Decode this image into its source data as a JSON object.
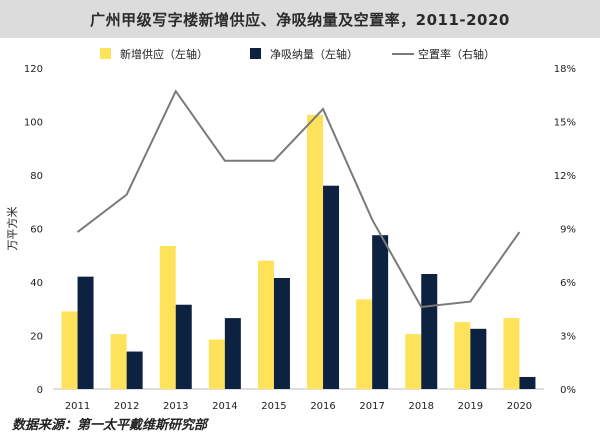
{
  "chart_data": {
    "type": "bar",
    "title": "广州甲级写字楼新增供应、净吸纳量及空置率，2011-2020",
    "ylabel": "万平方米",
    "source_note": "数据来源：第一太平戴维斯研究部",
    "categories": [
      "2011",
      "2012",
      "2013",
      "2014",
      "2015",
      "2016",
      "2017",
      "2018",
      "2019",
      "2020"
    ],
    "ylim": [
      0,
      120
    ],
    "yticks": [
      "0",
      "20",
      "40",
      "60",
      "80",
      "100",
      "120"
    ],
    "y2lim": [
      0,
      18
    ],
    "y2ticks": [
      "0%",
      "3%",
      "6%",
      "9%",
      "12%",
      "15%",
      "18%"
    ],
    "grid": false,
    "legend_position": "top",
    "series": [
      {
        "name": "新增供应（左轴）",
        "type": "bar",
        "axis": "left",
        "color": "#fde25a",
        "values": [
          29,
          20.5,
          53.5,
          18.5,
          48,
          102.5,
          33.5,
          20.5,
          25,
          26.5
        ]
      },
      {
        "name": "净吸纳量（左轴）",
        "type": "bar",
        "axis": "left",
        "color": "#0d2240",
        "values": [
          42,
          14,
          31.5,
          26.5,
          41.5,
          76,
          57.5,
          43,
          22.5,
          4.5
        ]
      },
      {
        "name": "空置率（右轴）",
        "type": "line",
        "axis": "right",
        "color": "#7a7a7a",
        "values": [
          8.8,
          10.9,
          16.7,
          12.8,
          12.8,
          15.7,
          9.5,
          4.6,
          4.9,
          8.8
        ]
      }
    ]
  }
}
